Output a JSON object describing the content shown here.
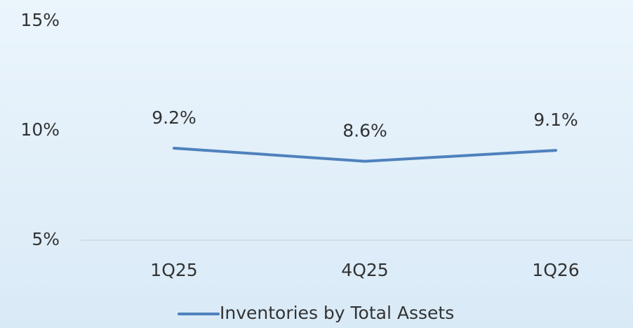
{
  "chart_data": {
    "type": "line",
    "categories": [
      "1Q25",
      "4Q25",
      "1Q26"
    ],
    "series": [
      {
        "name": "Inventories by Total Assets",
        "color": "#4f81bd",
        "values": [
          9.2,
          8.6,
          9.1
        ],
        "value_labels": [
          "9.2%",
          "8.6%",
          "9.1%"
        ]
      }
    ],
    "ylim": [
      5,
      15
    ],
    "yticks": [
      {
        "value": 5,
        "label": "5%"
      },
      {
        "value": 10,
        "label": "10%"
      },
      {
        "value": 15,
        "label": "15%"
      }
    ],
    "grid": false,
    "legend": "bottom"
  }
}
